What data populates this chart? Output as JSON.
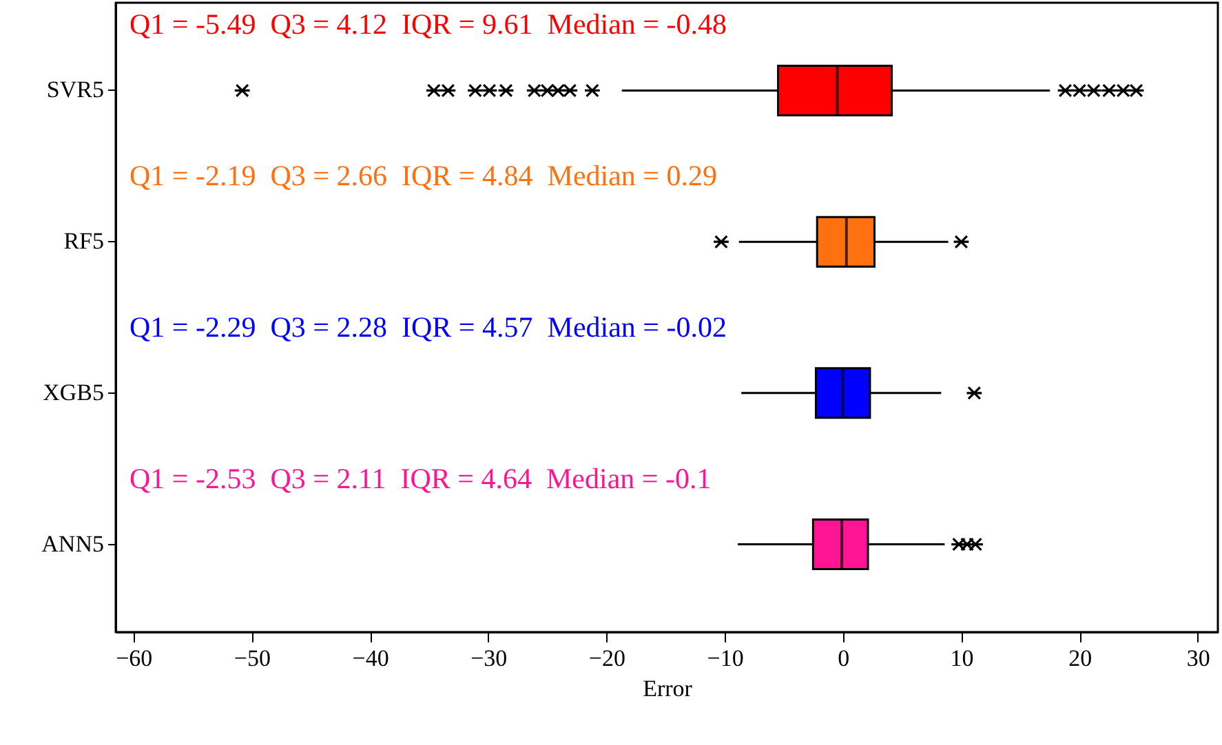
{
  "chart_data": {
    "type": "box",
    "orientation": "horizontal",
    "xlabel": "Error",
    "categories": [
      "SVR5",
      "RF5",
      "XGB5",
      "ANN5"
    ],
    "colors": [
      "#ff0000",
      "#ff7010",
      "#0000ff",
      "#ff1493"
    ],
    "boxes": [
      {
        "low": -18.7,
        "q1": -5.49,
        "median": -0.48,
        "q3": 4.12,
        "high": 17.5,
        "outliers": [
          -50.8,
          -34.6,
          -33.4,
          -31.1,
          -29.9,
          -28.5,
          -26.1,
          -25.0,
          -24.1,
          -23.1,
          -21.2,
          18.8,
          20.0,
          21.2,
          22.5,
          23.7,
          24.8
        ]
      },
      {
        "low": -8.8,
        "q1": -2.19,
        "median": 0.29,
        "q3": 2.66,
        "high": 8.9,
        "outliers": [
          -10.3,
          10.0
        ]
      },
      {
        "low": -8.6,
        "q1": -2.29,
        "median": -0.02,
        "q3": 2.28,
        "high": 8.3,
        "outliers": [
          11.1
        ]
      },
      {
        "low": -8.9,
        "q1": -2.53,
        "median": -0.1,
        "q3": 2.11,
        "high": 8.6,
        "outliers": [
          9.8,
          10.5,
          11.2
        ]
      }
    ],
    "annotations": [
      "Q1 = -5.49  Q3 = 4.12  IQR = 9.61  Median = -0.48",
      "Q1 = -2.19  Q3 = 2.66  IQR = 4.84  Median = 0.29",
      "Q1 = -2.29  Q3 = 2.28  IQR = 4.57  Median = -0.02",
      "Q1 = -2.53  Q3 = 2.11  IQR = 4.64  Median = -0.1"
    ],
    "xlim": [
      -61.5,
      31.7
    ],
    "xticks": [
      -60,
      -50,
      -40,
      -30,
      -20,
      -10,
      0,
      10,
      20,
      30
    ],
    "grid": false,
    "marker": "cross"
  }
}
